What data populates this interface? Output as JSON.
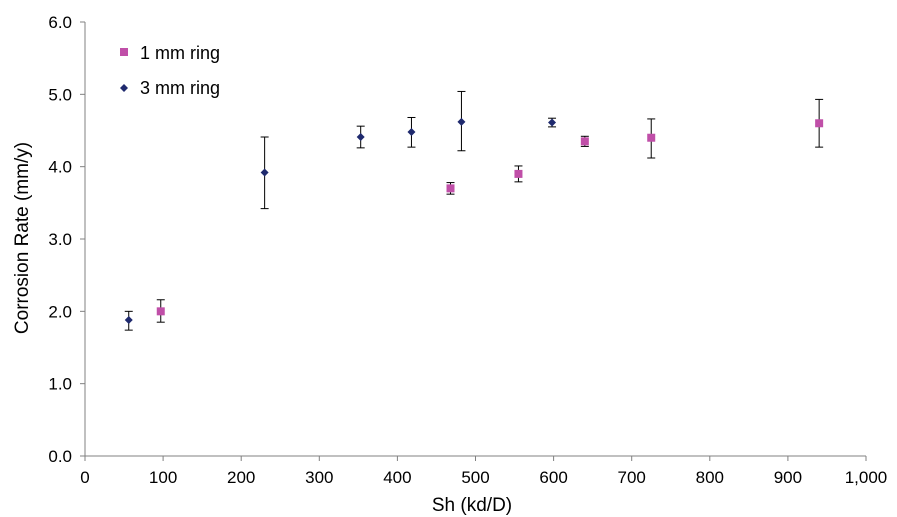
{
  "chart_data": {
    "type": "scatter",
    "title": "",
    "xlabel": "Sh (kd/D)",
    "ylabel": "Corrosion Rate (mm/y)",
    "xlim": [
      0,
      1000
    ],
    "ylim": [
      0,
      6
    ],
    "x_ticks": [
      "0",
      "100",
      "200",
      "300",
      "400",
      "500",
      "600",
      "700",
      "800",
      "900",
      "1,000"
    ],
    "y_ticks": [
      "0.0",
      "1.0",
      "2.0",
      "3.0",
      "4.0",
      "5.0",
      "6.0"
    ],
    "grid": false,
    "legend_position": "top-left",
    "series": [
      {
        "name": "1 mm ring",
        "marker": "square",
        "color": "#c04fa8",
        "points": [
          {
            "x": 97,
            "y": 2.0,
            "err_low": 1.85,
            "err_high": 2.16
          },
          {
            "x": 468,
            "y": 3.7,
            "err_low": 3.62,
            "err_high": 3.78
          },
          {
            "x": 555,
            "y": 3.9,
            "err_low": 3.79,
            "err_high": 4.01
          },
          {
            "x": 640,
            "y": 4.35,
            "err_low": 4.28,
            "err_high": 4.42
          },
          {
            "x": 725,
            "y": 4.4,
            "err_low": 4.12,
            "err_high": 4.66
          },
          {
            "x": 940,
            "y": 4.6,
            "err_low": 4.27,
            "err_high": 4.93
          }
        ]
      },
      {
        "name": "3 mm ring",
        "marker": "diamond",
        "color": "#1f2a6e",
        "points": [
          {
            "x": 56,
            "y": 1.88,
            "err_low": 1.74,
            "err_high": 2.0
          },
          {
            "x": 230,
            "y": 3.92,
            "err_low": 3.42,
            "err_high": 4.41
          },
          {
            "x": 353,
            "y": 4.41,
            "err_low": 4.26,
            "err_high": 4.56
          },
          {
            "x": 418,
            "y": 4.48,
            "err_low": 4.27,
            "err_high": 4.68
          },
          {
            "x": 482,
            "y": 4.62,
            "err_low": 4.22,
            "err_high": 5.04
          },
          {
            "x": 598,
            "y": 4.61,
            "err_low": 4.55,
            "err_high": 4.67
          }
        ]
      }
    ]
  }
}
